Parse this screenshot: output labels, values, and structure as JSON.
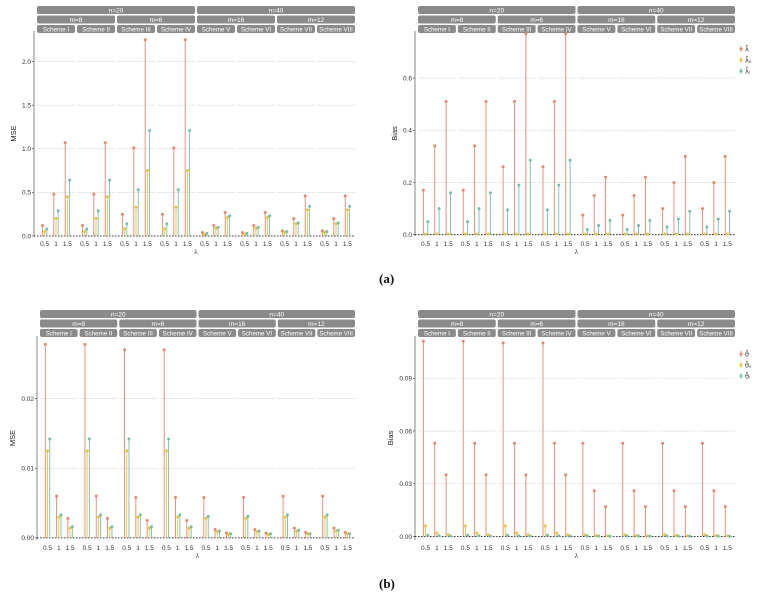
{
  "colors": {
    "mle": "#e8866e",
    "bayes_sq": "#e8c63a",
    "bayes_lin": "#72bfb0",
    "strip": "#8a8a8a",
    "strip_text": "#ffffff",
    "grid": "#e2e2e2"
  },
  "captions": [
    "(a)",
    "(b)"
  ],
  "chart_data": [
    {
      "type": "lollipop",
      "panel": "a-left",
      "ylabel": "MSE",
      "xlabel": "λ",
      "ylim": [
        0,
        2.35
      ],
      "yticks": [
        "0.0",
        "0.5",
        "1.0",
        "1.5",
        "2.0"
      ],
      "ytick_values": [
        0,
        0.5,
        1.0,
        1.5,
        2.0
      ],
      "x_ticks": [
        "0.5",
        "1",
        "1.5"
      ],
      "n_strips": [
        "n=20",
        "n=40"
      ],
      "m_strips": [
        "m=8",
        "m=6",
        "m=16",
        "m=12"
      ],
      "schemes": [
        "Scheme I",
        "Scheme II",
        "Scheme III",
        "Scheme IV",
        "Scheme V",
        "Scheme VI",
        "Scheme VII",
        "Scheme VIII"
      ],
      "legend": [],
      "series": [
        {
          "name": "MLE",
          "values": [
            [
              0.12,
              0.48,
              1.07
            ],
            [
              0.12,
              0.48,
              1.07
            ],
            [
              0.25,
              1.01,
              2.25
            ],
            [
              0.25,
              1.01,
              2.25
            ],
            [
              0.04,
              0.12,
              0.27
            ],
            [
              0.04,
              0.12,
              0.27
            ],
            [
              0.06,
              0.2,
              0.46
            ],
            [
              0.06,
              0.2,
              0.46
            ]
          ]
        },
        {
          "name": "Bayes-SE",
          "values": [
            [
              0.05,
              0.2,
              0.45
            ],
            [
              0.05,
              0.2,
              0.45
            ],
            [
              0.08,
              0.33,
              0.75
            ],
            [
              0.08,
              0.33,
              0.75
            ],
            [
              0.02,
              0.09,
              0.21
            ],
            [
              0.02,
              0.09,
              0.21
            ],
            [
              0.04,
              0.14,
              0.3
            ],
            [
              0.04,
              0.14,
              0.3
            ]
          ]
        },
        {
          "name": "Bayes-LINEX",
          "values": [
            [
              0.08,
              0.29,
              0.64
            ],
            [
              0.08,
              0.29,
              0.64
            ],
            [
              0.14,
              0.53,
              1.21
            ],
            [
              0.14,
              0.53,
              1.21
            ],
            [
              0.03,
              0.1,
              0.23
            ],
            [
              0.03,
              0.1,
              0.23
            ],
            [
              0.05,
              0.15,
              0.34
            ],
            [
              0.05,
              0.15,
              0.34
            ]
          ]
        }
      ]
    },
    {
      "type": "lollipop",
      "panel": "a-right",
      "ylabel": "Bias",
      "xlabel": "λ",
      "ylim": [
        -0.005,
        0.78
      ],
      "yticks": [
        "0.0",
        "0.2",
        "0.4",
        "0.6"
      ],
      "ytick_values": [
        0,
        0.2,
        0.4,
        0.6
      ],
      "x_ticks": [
        "0.5",
        "1",
        "1.5"
      ],
      "n_strips": [
        "n=20",
        "n=40"
      ],
      "m_strips": [
        "m=8",
        "m=6",
        "m=16",
        "m=12"
      ],
      "schemes": [
        "Scheme I",
        "Scheme II",
        "Scheme III",
        "Scheme IV",
        "Scheme V",
        "Scheme VI",
        "Scheme VII",
        "Scheme VIII"
      ],
      "legend": [
        "λ̂",
        "λ̂ₑ",
        "λ̂ₗ"
      ],
      "series": [
        {
          "name": "λ̂",
          "values": [
            [
              0.17,
              0.34,
              0.51
            ],
            [
              0.17,
              0.34,
              0.51
            ],
            [
              0.26,
              0.51,
              0.77
            ],
            [
              0.26,
              0.51,
              0.77
            ],
            [
              0.075,
              0.15,
              0.22
            ],
            [
              0.075,
              0.15,
              0.22
            ],
            [
              0.1,
              0.2,
              0.3
            ],
            [
              0.1,
              0.2,
              0.3
            ]
          ]
        },
        {
          "name": "λ̂ₑ",
          "values": [
            [
              0.002,
              0.002,
              0.002
            ],
            [
              0.002,
              0.002,
              0.002
            ],
            [
              0.002,
              0.002,
              0.002
            ],
            [
              0.002,
              0.002,
              0.002
            ],
            [
              0.002,
              0.002,
              0.002
            ],
            [
              0.002,
              0.002,
              0.002
            ],
            [
              0.002,
              0.002,
              0.002
            ],
            [
              0.002,
              0.002,
              0.002
            ]
          ]
        },
        {
          "name": "λ̂ₗ",
          "values": [
            [
              0.05,
              0.1,
              0.16
            ],
            [
              0.05,
              0.1,
              0.16
            ],
            [
              0.095,
              0.19,
              0.285
            ],
            [
              0.095,
              0.19,
              0.285
            ],
            [
              0.02,
              0.035,
              0.055
            ],
            [
              0.02,
              0.035,
              0.055
            ],
            [
              0.03,
              0.06,
              0.09
            ],
            [
              0.03,
              0.06,
              0.09
            ]
          ]
        }
      ]
    },
    {
      "type": "lollipop",
      "panel": "b-left",
      "ylabel": "MSE",
      "xlabel": "λ",
      "ylim": [
        -0.0003,
        0.029
      ],
      "yticks": [
        "0.00",
        "0.01",
        "0.02"
      ],
      "ytick_values": [
        0,
        0.01,
        0.02
      ],
      "x_ticks": [
        "0.5",
        "1",
        "1.5"
      ],
      "n_strips": [
        "n=20",
        "n=40"
      ],
      "m_strips": [
        "m=8",
        "m=6",
        "m=16",
        "m=12"
      ],
      "schemes": [
        "Scheme I",
        "Scheme II",
        "Scheme III",
        "Scheme IV",
        "Scheme V",
        "Scheme VI",
        "Scheme VII",
        "Scheme VIII"
      ],
      "legend": [],
      "series": [
        {
          "name": "MLE",
          "values": [
            [
              0.0278,
              0.006,
              0.0028
            ],
            [
              0.0278,
              0.006,
              0.0028
            ],
            [
              0.027,
              0.0058,
              0.0025
            ],
            [
              0.027,
              0.0058,
              0.0025
            ],
            [
              0.0058,
              0.0012,
              0.0007
            ],
            [
              0.0058,
              0.0012,
              0.0007
            ],
            [
              0.006,
              0.0014,
              0.0008
            ],
            [
              0.006,
              0.0014,
              0.0008
            ]
          ]
        },
        {
          "name": "Bayes-SE",
          "values": [
            [
              0.0125,
              0.003,
              0.0014
            ],
            [
              0.0125,
              0.003,
              0.0014
            ],
            [
              0.0125,
              0.003,
              0.0014
            ],
            [
              0.0125,
              0.003,
              0.0014
            ],
            [
              0.0028,
              0.0009,
              0.0005
            ],
            [
              0.0028,
              0.0009,
              0.0005
            ],
            [
              0.003,
              0.001,
              0.0006
            ],
            [
              0.003,
              0.001,
              0.0006
            ]
          ]
        },
        {
          "name": "Bayes-LINEX",
          "values": [
            [
              0.0142,
              0.0033,
              0.0016
            ],
            [
              0.0142,
              0.0033,
              0.0016
            ],
            [
              0.0142,
              0.0033,
              0.0016
            ],
            [
              0.0142,
              0.0033,
              0.0016
            ],
            [
              0.0031,
              0.001,
              0.0006
            ],
            [
              0.0031,
              0.001,
              0.0006
            ],
            [
              0.0033,
              0.0011,
              0.0006
            ],
            [
              0.0033,
              0.0011,
              0.0006
            ]
          ]
        }
      ]
    },
    {
      "type": "lollipop",
      "panel": "b-right",
      "ylabel": "Bias",
      "xlabel": "λ",
      "ylim": [
        -0.002,
        0.114
      ],
      "yticks": [
        "0.00",
        "0.03",
        "0.06",
        "0.09"
      ],
      "ytick_values": [
        0,
        0.03,
        0.06,
        0.09
      ],
      "x_ticks": [
        "0.5",
        "1",
        "1.5"
      ],
      "n_strips": [
        "n=20",
        "n=40"
      ],
      "m_strips": [
        "m=8",
        "m=6",
        "m=16",
        "m=12"
      ],
      "schemes": [
        "Scheme I",
        "Scheme II",
        "Scheme III",
        "Scheme IV",
        "Scheme V",
        "Scheme VI",
        "Scheme VII",
        "Scheme VIII"
      ],
      "legend": [
        "θ̂",
        "θ̂ₑ",
        "θ̂ₗ"
      ],
      "series": [
        {
          "name": "θ̂",
          "values": [
            [
              0.111,
              0.053,
              0.035
            ],
            [
              0.111,
              0.053,
              0.035
            ],
            [
              0.11,
              0.053,
              0.035
            ],
            [
              0.11,
              0.053,
              0.035
            ],
            [
              0.053,
              0.026,
              0.017
            ],
            [
              0.053,
              0.026,
              0.017
            ],
            [
              0.053,
              0.026,
              0.017
            ],
            [
              0.053,
              0.026,
              0.017
            ]
          ]
        },
        {
          "name": "θ̂ₑ",
          "values": [
            [
              0.006,
              0.002,
              0.001
            ],
            [
              0.006,
              0.002,
              0.001
            ],
            [
              0.006,
              0.002,
              0.001
            ],
            [
              0.006,
              0.002,
              0.001
            ],
            [
              0.001,
              0.0005,
              0.0003
            ],
            [
              0.001,
              0.0005,
              0.0003
            ],
            [
              0.001,
              0.0005,
              0.0003
            ],
            [
              0.001,
              0.0005,
              0.0003
            ]
          ]
        },
        {
          "name": "θ̂ₗ",
          "values": [
            [
              0.0008,
              0.0004,
              0.0002
            ],
            [
              0.0008,
              0.0004,
              0.0002
            ],
            [
              0.0008,
              0.0004,
              0.0002
            ],
            [
              0.0008,
              0.0004,
              0.0002
            ],
            [
              0.0003,
              0.0002,
              0.0001
            ],
            [
              0.0003,
              0.0002,
              0.0001
            ],
            [
              0.0003,
              0.0002,
              0.0001
            ],
            [
              0.0003,
              0.0002,
              0.0001
            ]
          ]
        }
      ]
    }
  ]
}
